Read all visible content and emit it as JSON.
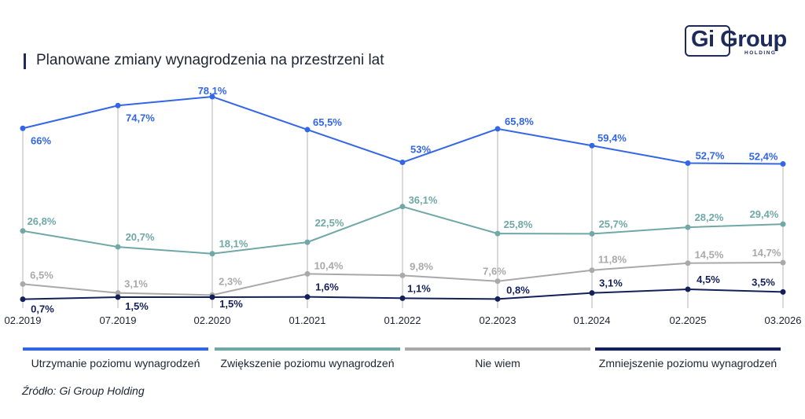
{
  "header": {
    "title": "Planowane zmiany wynagrodzenia na przestrzeni lat"
  },
  "logo": {
    "name": "Gi Group",
    "subtitle": "HOLDING",
    "color": "#1f2a5c"
  },
  "chart_data": {
    "type": "line",
    "title": "Planowane zmiany wynagrodzenia na przestrzeni lat",
    "xlabel": "",
    "ylabel": "",
    "ylim": [
      0,
      85
    ],
    "grid": false,
    "legend_placement": "bottom",
    "categories": [
      "02.2019",
      "07.2019",
      "02.2020",
      "01.2021",
      "01.2022",
      "02.2023",
      "01.2024",
      "02.2025",
      "03.2026"
    ],
    "series": [
      {
        "name": "Utrzymanie poziomu wynagrodzeń",
        "color": "#3366e6",
        "values": [
          66,
          74.7,
          78.1,
          65.5,
          53,
          65.8,
          59.4,
          52.7,
          52.4
        ],
        "labels": [
          "66%",
          "74,7%",
          "78,1%",
          "65,5%",
          "53%",
          "65,8%",
          "59,4%",
          "52,7%",
          "52,4%"
        ]
      },
      {
        "name": "Zwiększenie poziomu wynagrodzeń",
        "color": "#6fa8a6",
        "values": [
          26.8,
          20.7,
          18.1,
          22.5,
          36.1,
          25.8,
          25.7,
          28.2,
          29.4
        ],
        "labels": [
          "26,8%",
          "20,7%",
          "18,1%",
          "22,5%",
          "36,1%",
          "25,8%",
          "25,7%",
          "28,2%",
          "29,4%"
        ]
      },
      {
        "name": "Nie wiem",
        "color": "#a9a9a9",
        "values": [
          6.5,
          3.1,
          2.3,
          10.4,
          9.8,
          7.6,
          11.8,
          14.5,
          14.7
        ],
        "labels": [
          "6,5%",
          "3,1%",
          "2,3%",
          "10,4%",
          "9,8%",
          "7,6%",
          "11,8%",
          "14,5%",
          "14,7%"
        ]
      },
      {
        "name": "Zmniejszenie poziomu wynagrodzeń",
        "color": "#14205a",
        "values": [
          0.7,
          1.5,
          1.5,
          1.6,
          1.1,
          0.8,
          3.1,
          4.5,
          3.5
        ],
        "labels": [
          "0,7%",
          "1,5%",
          "1,5%",
          "1,6%",
          "1,1%",
          "0,8%",
          "3,1%",
          "4,5%",
          "3,5%"
        ]
      }
    ]
  },
  "source": "Źródło: Gi Group Holding"
}
